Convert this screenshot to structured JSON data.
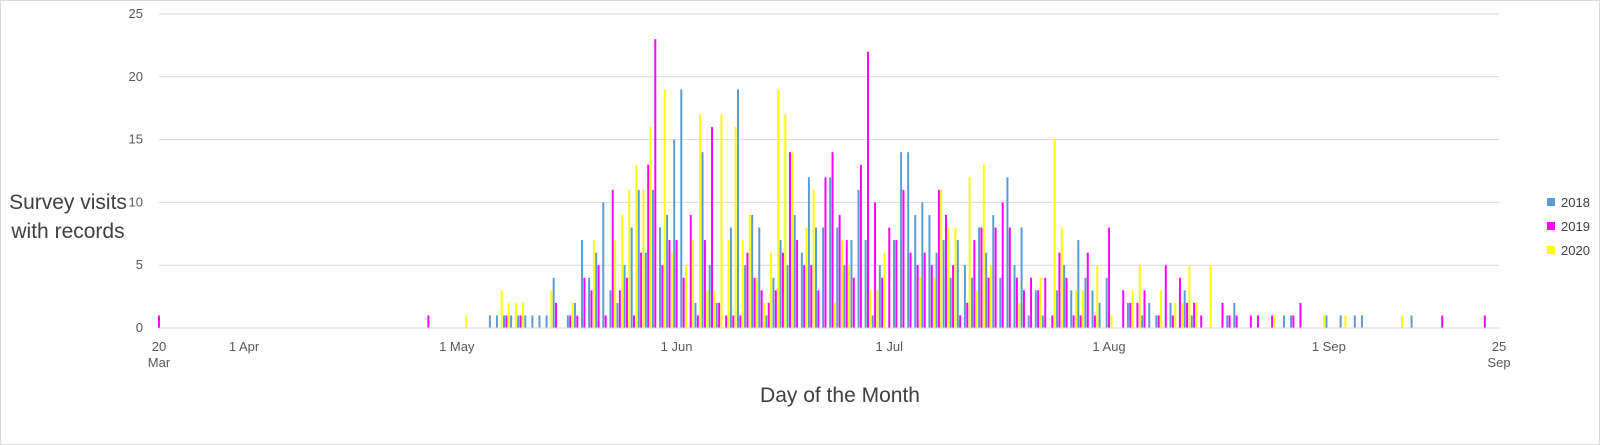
{
  "chart_data": {
    "type": "bar",
    "title": "",
    "ylabel": "Survey visits with records",
    "xlabel": "Day of the Month",
    "ylim": [
      0,
      25
    ],
    "yticks": [
      0,
      5,
      10,
      15,
      20,
      25
    ],
    "xlim": [
      "2020-03-20",
      "2020-09-25"
    ],
    "xticks": [
      {
        "date": "2020-03-20",
        "label": [
          "20",
          "Mar"
        ]
      },
      {
        "date": "2020-04-01",
        "label": [
          "1 Apr"
        ]
      },
      {
        "date": "2020-05-01",
        "label": [
          "1 May"
        ]
      },
      {
        "date": "2020-06-01",
        "label": [
          "1 Jun"
        ]
      },
      {
        "date": "2020-07-01",
        "label": [
          "1 Jul"
        ]
      },
      {
        "date": "2020-08-01",
        "label": [
          "1 Aug"
        ]
      },
      {
        "date": "2020-09-01",
        "label": [
          "1 Sep"
        ]
      },
      {
        "date": "2020-09-25",
        "label": [
          "25",
          "Sep"
        ]
      }
    ],
    "grid": true,
    "legend_position": "right",
    "series": [
      {
        "name": "2018",
        "color": "#5b9bd5",
        "points": [
          [
            "2020-05-06",
            1
          ],
          [
            "2020-05-07",
            1
          ],
          [
            "2020-05-08",
            1
          ],
          [
            "2020-05-09",
            1
          ],
          [
            "2020-05-10",
            1
          ],
          [
            "2020-05-11",
            1
          ],
          [
            "2020-05-12",
            1
          ],
          [
            "2020-05-13",
            1
          ],
          [
            "2020-05-14",
            1
          ],
          [
            "2020-05-15",
            4
          ],
          [
            "2020-05-17",
            1
          ],
          [
            "2020-05-18",
            2
          ],
          [
            "2020-05-19",
            7
          ],
          [
            "2020-05-20",
            4
          ],
          [
            "2020-05-21",
            6
          ],
          [
            "2020-05-22",
            10
          ],
          [
            "2020-05-23",
            3
          ],
          [
            "2020-05-24",
            2
          ],
          [
            "2020-05-25",
            5
          ],
          [
            "2020-05-26",
            8
          ],
          [
            "2020-05-27",
            11
          ],
          [
            "2020-05-28",
            6
          ],
          [
            "2020-05-29",
            11
          ],
          [
            "2020-05-30",
            8
          ],
          [
            "2020-05-31",
            9
          ],
          [
            "2020-06-01",
            15
          ],
          [
            "2020-06-02",
            19
          ],
          [
            "2020-06-04",
            2
          ],
          [
            "2020-06-05",
            14
          ],
          [
            "2020-06-06",
            5
          ],
          [
            "2020-06-07",
            2
          ],
          [
            "2020-06-09",
            8
          ],
          [
            "2020-06-10",
            19
          ],
          [
            "2020-06-11",
            5
          ],
          [
            "2020-06-12",
            9
          ],
          [
            "2020-06-13",
            8
          ],
          [
            "2020-06-14",
            1
          ],
          [
            "2020-06-15",
            4
          ],
          [
            "2020-06-16",
            7
          ],
          [
            "2020-06-17",
            5
          ],
          [
            "2020-06-18",
            9
          ],
          [
            "2020-06-19",
            6
          ],
          [
            "2020-06-20",
            12
          ],
          [
            "2020-06-21",
            8
          ],
          [
            "2020-06-22",
            8
          ],
          [
            "2020-06-23",
            12
          ],
          [
            "2020-06-24",
            8
          ],
          [
            "2020-06-25",
            5
          ],
          [
            "2020-06-26",
            7
          ],
          [
            "2020-06-27",
            11
          ],
          [
            "2020-06-28",
            7
          ],
          [
            "2020-06-29",
            1
          ],
          [
            "2020-06-30",
            5
          ],
          [
            "2020-07-02",
            7
          ],
          [
            "2020-07-03",
            14
          ],
          [
            "2020-07-04",
            14
          ],
          [
            "2020-07-05",
            9
          ],
          [
            "2020-07-06",
            10
          ],
          [
            "2020-07-07",
            9
          ],
          [
            "2020-07-08",
            6
          ],
          [
            "2020-07-09",
            7
          ],
          [
            "2020-07-10",
            4
          ],
          [
            "2020-07-11",
            7
          ],
          [
            "2020-07-12",
            5
          ],
          [
            "2020-07-13",
            4
          ],
          [
            "2020-07-14",
            8
          ],
          [
            "2020-07-15",
            6
          ],
          [
            "2020-07-16",
            9
          ],
          [
            "2020-07-17",
            4
          ],
          [
            "2020-07-18",
            12
          ],
          [
            "2020-07-19",
            5
          ],
          [
            "2020-07-20",
            8
          ],
          [
            "2020-07-21",
            1
          ],
          [
            "2020-07-22",
            3
          ],
          [
            "2020-07-23",
            1
          ],
          [
            "2020-07-25",
            3
          ],
          [
            "2020-07-26",
            5
          ],
          [
            "2020-07-27",
            3
          ],
          [
            "2020-07-28",
            7
          ],
          [
            "2020-07-29",
            4
          ],
          [
            "2020-07-30",
            3
          ],
          [
            "2020-07-31",
            2
          ],
          [
            "2020-08-01",
            4
          ],
          [
            "2020-08-04",
            2
          ],
          [
            "2020-08-06",
            1
          ],
          [
            "2020-08-07",
            2
          ],
          [
            "2020-08-08",
            1
          ],
          [
            "2020-08-10",
            2
          ],
          [
            "2020-08-12",
            3
          ],
          [
            "2020-08-13",
            1
          ],
          [
            "2020-08-18",
            1
          ],
          [
            "2020-08-19",
            2
          ],
          [
            "2020-08-26",
            1
          ],
          [
            "2020-08-27",
            1
          ],
          [
            "2020-09-01",
            1
          ],
          [
            "2020-09-03",
            1
          ],
          [
            "2020-09-05",
            1
          ],
          [
            "2020-09-06",
            1
          ],
          [
            "2020-09-13",
            1
          ]
        ]
      },
      {
        "name": "2019",
        "color": "#ff00ff",
        "points": [
          [
            "2020-03-20",
            1
          ],
          [
            "2020-04-27",
            1
          ],
          [
            "2020-05-08",
            1
          ],
          [
            "2020-05-10",
            1
          ],
          [
            "2020-05-15",
            2
          ],
          [
            "2020-05-17",
            1
          ],
          [
            "2020-05-18",
            1
          ],
          [
            "2020-05-19",
            4
          ],
          [
            "2020-05-20",
            3
          ],
          [
            "2020-05-21",
            5
          ],
          [
            "2020-05-22",
            1
          ],
          [
            "2020-05-23",
            11
          ],
          [
            "2020-05-24",
            3
          ],
          [
            "2020-05-25",
            4
          ],
          [
            "2020-05-26",
            1
          ],
          [
            "2020-05-27",
            6
          ],
          [
            "2020-05-28",
            13
          ],
          [
            "2020-05-29",
            23
          ],
          [
            "2020-05-30",
            5
          ],
          [
            "2020-05-31",
            7
          ],
          [
            "2020-06-01",
            7
          ],
          [
            "2020-06-02",
            4
          ],
          [
            "2020-06-03",
            9
          ],
          [
            "2020-06-04",
            1
          ],
          [
            "2020-06-05",
            7
          ],
          [
            "2020-06-06",
            16
          ],
          [
            "2020-06-07",
            2
          ],
          [
            "2020-06-08",
            1
          ],
          [
            "2020-06-09",
            1
          ],
          [
            "2020-06-10",
            1
          ],
          [
            "2020-06-11",
            6
          ],
          [
            "2020-06-12",
            4
          ],
          [
            "2020-06-13",
            3
          ],
          [
            "2020-06-14",
            2
          ],
          [
            "2020-06-15",
            3
          ],
          [
            "2020-06-16",
            6
          ],
          [
            "2020-06-17",
            14
          ],
          [
            "2020-06-18",
            7
          ],
          [
            "2020-06-19",
            5
          ],
          [
            "2020-06-20",
            5
          ],
          [
            "2020-06-21",
            3
          ],
          [
            "2020-06-22",
            12
          ],
          [
            "2020-06-23",
            14
          ],
          [
            "2020-06-24",
            9
          ],
          [
            "2020-06-25",
            7
          ],
          [
            "2020-06-26",
            4
          ],
          [
            "2020-06-27",
            13
          ],
          [
            "2020-06-28",
            22
          ],
          [
            "2020-06-29",
            10
          ],
          [
            "2020-06-30",
            4
          ],
          [
            "2020-07-01",
            8
          ],
          [
            "2020-07-02",
            7
          ],
          [
            "2020-07-03",
            11
          ],
          [
            "2020-07-04",
            6
          ],
          [
            "2020-07-05",
            5
          ],
          [
            "2020-07-06",
            6
          ],
          [
            "2020-07-07",
            5
          ],
          [
            "2020-07-08",
            11
          ],
          [
            "2020-07-09",
            9
          ],
          [
            "2020-07-10",
            5
          ],
          [
            "2020-07-11",
            1
          ],
          [
            "2020-07-12",
            2
          ],
          [
            "2020-07-13",
            7
          ],
          [
            "2020-07-14",
            8
          ],
          [
            "2020-07-15",
            4
          ],
          [
            "2020-07-16",
            8
          ],
          [
            "2020-07-17",
            10
          ],
          [
            "2020-07-18",
            8
          ],
          [
            "2020-07-19",
            4
          ],
          [
            "2020-07-20",
            3
          ],
          [
            "2020-07-21",
            4
          ],
          [
            "2020-07-22",
            3
          ],
          [
            "2020-07-23",
            4
          ],
          [
            "2020-07-24",
            1
          ],
          [
            "2020-07-25",
            6
          ],
          [
            "2020-07-26",
            4
          ],
          [
            "2020-07-27",
            1
          ],
          [
            "2020-07-28",
            1
          ],
          [
            "2020-07-29",
            6
          ],
          [
            "2020-07-30",
            1
          ],
          [
            "2020-08-01",
            8
          ],
          [
            "2020-08-03",
            3
          ],
          [
            "2020-08-04",
            2
          ],
          [
            "2020-08-05",
            2
          ],
          [
            "2020-08-06",
            3
          ],
          [
            "2020-08-08",
            1
          ],
          [
            "2020-08-09",
            5
          ],
          [
            "2020-08-10",
            1
          ],
          [
            "2020-08-11",
            4
          ],
          [
            "2020-08-12",
            2
          ],
          [
            "2020-08-13",
            2
          ],
          [
            "2020-08-14",
            1
          ],
          [
            "2020-08-17",
            2
          ],
          [
            "2020-08-18",
            1
          ],
          [
            "2020-08-19",
            1
          ],
          [
            "2020-08-21",
            1
          ],
          [
            "2020-08-22",
            1
          ],
          [
            "2020-08-24",
            1
          ],
          [
            "2020-08-27",
            1
          ],
          [
            "2020-08-28",
            2
          ],
          [
            "2020-09-17",
            1
          ],
          [
            "2020-09-23",
            1
          ]
        ]
      },
      {
        "name": "2020",
        "color": "#ffff00",
        "points": [
          [
            "2020-05-02",
            1
          ],
          [
            "2020-05-07",
            3
          ],
          [
            "2020-05-08",
            2
          ],
          [
            "2020-05-09",
            2
          ],
          [
            "2020-05-10",
            2
          ],
          [
            "2020-05-14",
            3
          ],
          [
            "2020-05-17",
            2
          ],
          [
            "2020-05-20",
            7
          ],
          [
            "2020-05-23",
            7
          ],
          [
            "2020-05-24",
            9
          ],
          [
            "2020-05-25",
            11
          ],
          [
            "2020-05-26",
            13
          ],
          [
            "2020-05-27",
            11
          ],
          [
            "2020-05-28",
            16
          ],
          [
            "2020-05-30",
            19
          ],
          [
            "2020-05-31",
            6
          ],
          [
            "2020-06-02",
            5
          ],
          [
            "2020-06-03",
            7
          ],
          [
            "2020-06-04",
            17
          ],
          [
            "2020-06-05",
            3
          ],
          [
            "2020-06-06",
            3
          ],
          [
            "2020-06-07",
            17
          ],
          [
            "2020-06-08",
            7
          ],
          [
            "2020-06-09",
            16
          ],
          [
            "2020-06-10",
            7
          ],
          [
            "2020-06-11",
            9
          ],
          [
            "2020-06-12",
            4
          ],
          [
            "2020-06-13",
            2
          ],
          [
            "2020-06-14",
            6
          ],
          [
            "2020-06-15",
            19
          ],
          [
            "2020-06-16",
            17
          ],
          [
            "2020-06-17",
            14
          ],
          [
            "2020-06-19",
            8
          ],
          [
            "2020-06-20",
            11
          ],
          [
            "2020-06-23",
            2
          ],
          [
            "2020-06-24",
            7
          ],
          [
            "2020-06-25",
            5
          ],
          [
            "2020-06-28",
            3
          ],
          [
            "2020-06-29",
            3
          ],
          [
            "2020-06-30",
            6
          ],
          [
            "2020-07-05",
            4
          ],
          [
            "2020-07-07",
            4
          ],
          [
            "2020-07-08",
            11
          ],
          [
            "2020-07-09",
            8
          ],
          [
            "2020-07-10",
            8
          ],
          [
            "2020-07-12",
            12
          ],
          [
            "2020-07-13",
            3
          ],
          [
            "2020-07-14",
            13
          ],
          [
            "2020-07-15",
            5
          ],
          [
            "2020-07-19",
            2
          ],
          [
            "2020-07-22",
            4
          ],
          [
            "2020-07-24",
            15
          ],
          [
            "2020-07-25",
            8
          ],
          [
            "2020-07-27",
            3
          ],
          [
            "2020-07-28",
            3
          ],
          [
            "2020-07-30",
            5
          ],
          [
            "2020-08-01",
            1
          ],
          [
            "2020-08-04",
            3
          ],
          [
            "2020-08-05",
            5
          ],
          [
            "2020-08-08",
            3
          ],
          [
            "2020-08-10",
            2
          ],
          [
            "2020-08-11",
            2
          ],
          [
            "2020-08-12",
            5
          ],
          [
            "2020-08-13",
            2
          ],
          [
            "2020-08-15",
            5
          ],
          [
            "2020-08-24",
            1
          ],
          [
            "2020-08-31",
            1
          ],
          [
            "2020-09-03",
            1
          ],
          [
            "2020-09-11",
            1
          ]
        ]
      }
    ]
  }
}
